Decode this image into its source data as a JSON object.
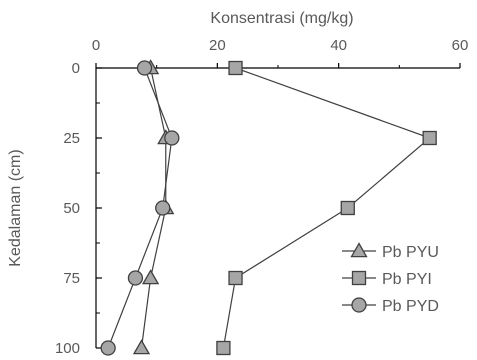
{
  "chart_data": {
    "type": "line",
    "xlabel": "Konsentrasi (mg/kg)",
    "ylabel": "Kedalaman (cm)",
    "xlim": [
      0,
      60
    ],
    "ylim": [
      0,
      100
    ],
    "x_ticks": [
      "0",
      "20",
      "40",
      "60"
    ],
    "y_ticks": [
      "0",
      "25",
      "50",
      "75",
      "100"
    ],
    "x_axis_position": "top",
    "y_axis_inverted": true,
    "grid": false,
    "legend_position": "bottom-right",
    "series": [
      {
        "name": "Pb PYU",
        "marker": "triangle",
        "x": [
          9,
          11.5,
          11.5,
          9,
          7.5
        ],
        "y": [
          0,
          25,
          50,
          75,
          100
        ]
      },
      {
        "name": "Pb PYI",
        "marker": "square",
        "x": [
          23,
          55,
          41.5,
          23,
          21
        ],
        "y": [
          0,
          25,
          50,
          75,
          100
        ]
      },
      {
        "name": "Pb PYD",
        "marker": "circle",
        "x": [
          8,
          12.5,
          11,
          6.5,
          2
        ],
        "y": [
          0,
          25,
          50,
          75,
          100
        ]
      }
    ],
    "colors": {
      "line": "#404040",
      "marker_fill": "#a6a6a6",
      "axis": "#000000",
      "text": "#595959"
    }
  }
}
